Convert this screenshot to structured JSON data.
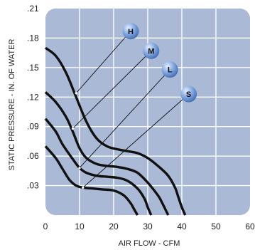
{
  "chart_data": {
    "type": "line",
    "xlabel": "AIR FLOW - CFM",
    "ylabel": "STATIC PRESSURE - IN. OF WATER",
    "xlim": [
      0,
      60
    ],
    "ylim": [
      0,
      0.21
    ],
    "x_ticks": [
      "0",
      "10",
      "20",
      "30",
      "40",
      "50",
      "60"
    ],
    "y_ticks": [
      ".03",
      ".06",
      ".09",
      ".12",
      ".15",
      ".18",
      ".21"
    ],
    "grid": true,
    "colors": {
      "plot_background": "#a9b9d6",
      "grid": "#ffffff",
      "curve": "#111111",
      "bubble": "#6f95cf"
    },
    "series": [
      {
        "name": "H",
        "x": [
          0,
          3,
          6,
          9,
          12,
          15,
          18,
          21,
          24,
          27,
          30,
          33,
          36,
          38,
          39,
          40,
          41
        ],
        "y": [
          0.17,
          0.162,
          0.145,
          0.12,
          0.095,
          0.078,
          0.07,
          0.067,
          0.065,
          0.063,
          0.058,
          0.05,
          0.04,
          0.028,
          0.018,
          0.008,
          0.0
        ]
      },
      {
        "name": "M",
        "x": [
          0,
          3,
          6,
          8,
          10,
          12,
          15,
          18,
          21,
          24,
          27,
          30,
          33,
          34,
          35,
          36
        ],
        "y": [
          0.125,
          0.115,
          0.1,
          0.085,
          0.068,
          0.058,
          0.052,
          0.05,
          0.049,
          0.047,
          0.043,
          0.033,
          0.02,
          0.014,
          0.007,
          0.0
        ]
      },
      {
        "name": "L",
        "x": [
          0,
          3,
          5,
          8,
          10,
          12,
          15,
          18,
          21,
          24,
          27,
          29,
          30,
          31
        ],
        "y": [
          0.098,
          0.085,
          0.072,
          0.057,
          0.048,
          0.043,
          0.04,
          0.039,
          0.038,
          0.035,
          0.027,
          0.017,
          0.008,
          0.0
        ]
      },
      {
        "name": "S",
        "x": [
          0,
          3,
          5,
          7,
          9,
          11,
          14,
          17,
          20,
          23,
          25,
          26,
          27
        ],
        "y": [
          0.07,
          0.058,
          0.047,
          0.036,
          0.03,
          0.028,
          0.027,
          0.026,
          0.025,
          0.02,
          0.012,
          0.006,
          0.0
        ]
      }
    ],
    "labels": [
      {
        "text": "H",
        "at": [
          25,
          0.187
        ],
        "points_to": [
          9,
          0.124
        ]
      },
      {
        "text": "M",
        "at": [
          31,
          0.167
        ],
        "points_to": [
          8,
          0.088
        ]
      },
      {
        "text": "L",
        "at": [
          36.5,
          0.148
        ],
        "points_to": [
          10,
          0.048
        ]
      },
      {
        "text": "S",
        "at": [
          42,
          0.123
        ],
        "points_to": [
          11,
          0.028
        ]
      }
    ]
  }
}
